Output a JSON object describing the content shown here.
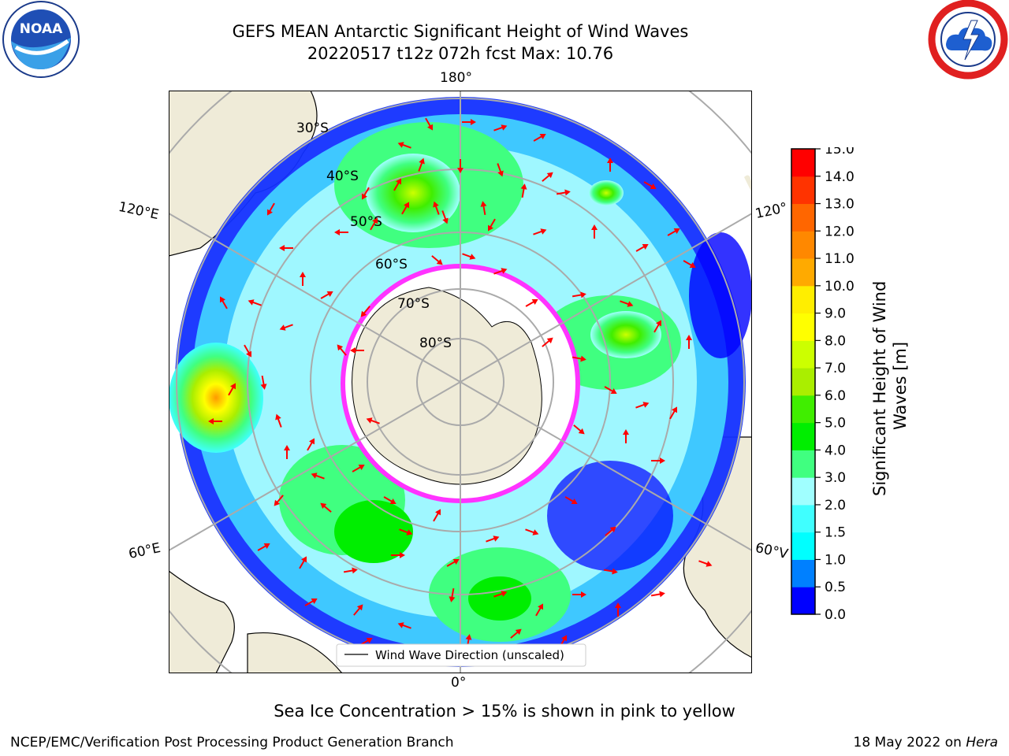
{
  "title": {
    "line1": "GEFS MEAN Antarctic Significant Height of Wind Waves",
    "line2": "20220517 t12z 072h fcst   Max: 10.76"
  },
  "map": {
    "projection": "south polar stereographic",
    "lon_labels": {
      "top": "180°",
      "bottom": "0°",
      "left_upper": "120°E",
      "left_lower": "60°E",
      "right_upper": "120°",
      "right_lower": "60°V"
    },
    "lat_labels": [
      "30°S",
      "40°S",
      "50°S",
      "60°S",
      "70°S",
      "80°S"
    ],
    "legend": "Wind Wave Direction (unscaled)",
    "arrow_color": "#ff0000",
    "land_color": "#efebd8",
    "ice_edge_color": "#ff33ff"
  },
  "colorbar": {
    "label": "Significant Height of Wind Waves [m]",
    "ticks": [
      "0.0",
      "0.5",
      "1.0",
      "1.5",
      "2.0",
      "3.0",
      "4.0",
      "5.0",
      "6.0",
      "7.0",
      "8.0",
      "9.0",
      "10.0",
      "11.0",
      "12.0",
      "13.0",
      "14.0",
      "15.0"
    ],
    "colors": [
      "#0000ff",
      "#0080ff",
      "#00ffff",
      "#40ffff",
      "#a0ffff",
      "#40ff80",
      "#00ee00",
      "#40ee00",
      "#aaee00",
      "#ccff00",
      "#ffff00",
      "#ffee00",
      "#ffaa00",
      "#ff8800",
      "#ff6600",
      "#ff3300",
      "#ff0000"
    ]
  },
  "note": "Sea Ice Concentration > 15% is shown in pink to yellow",
  "footer": {
    "left": "NCEP/EMC/Verification Post Processing Product Generation Branch",
    "date": "18 May 2022 on ",
    "host": "Hera"
  }
}
